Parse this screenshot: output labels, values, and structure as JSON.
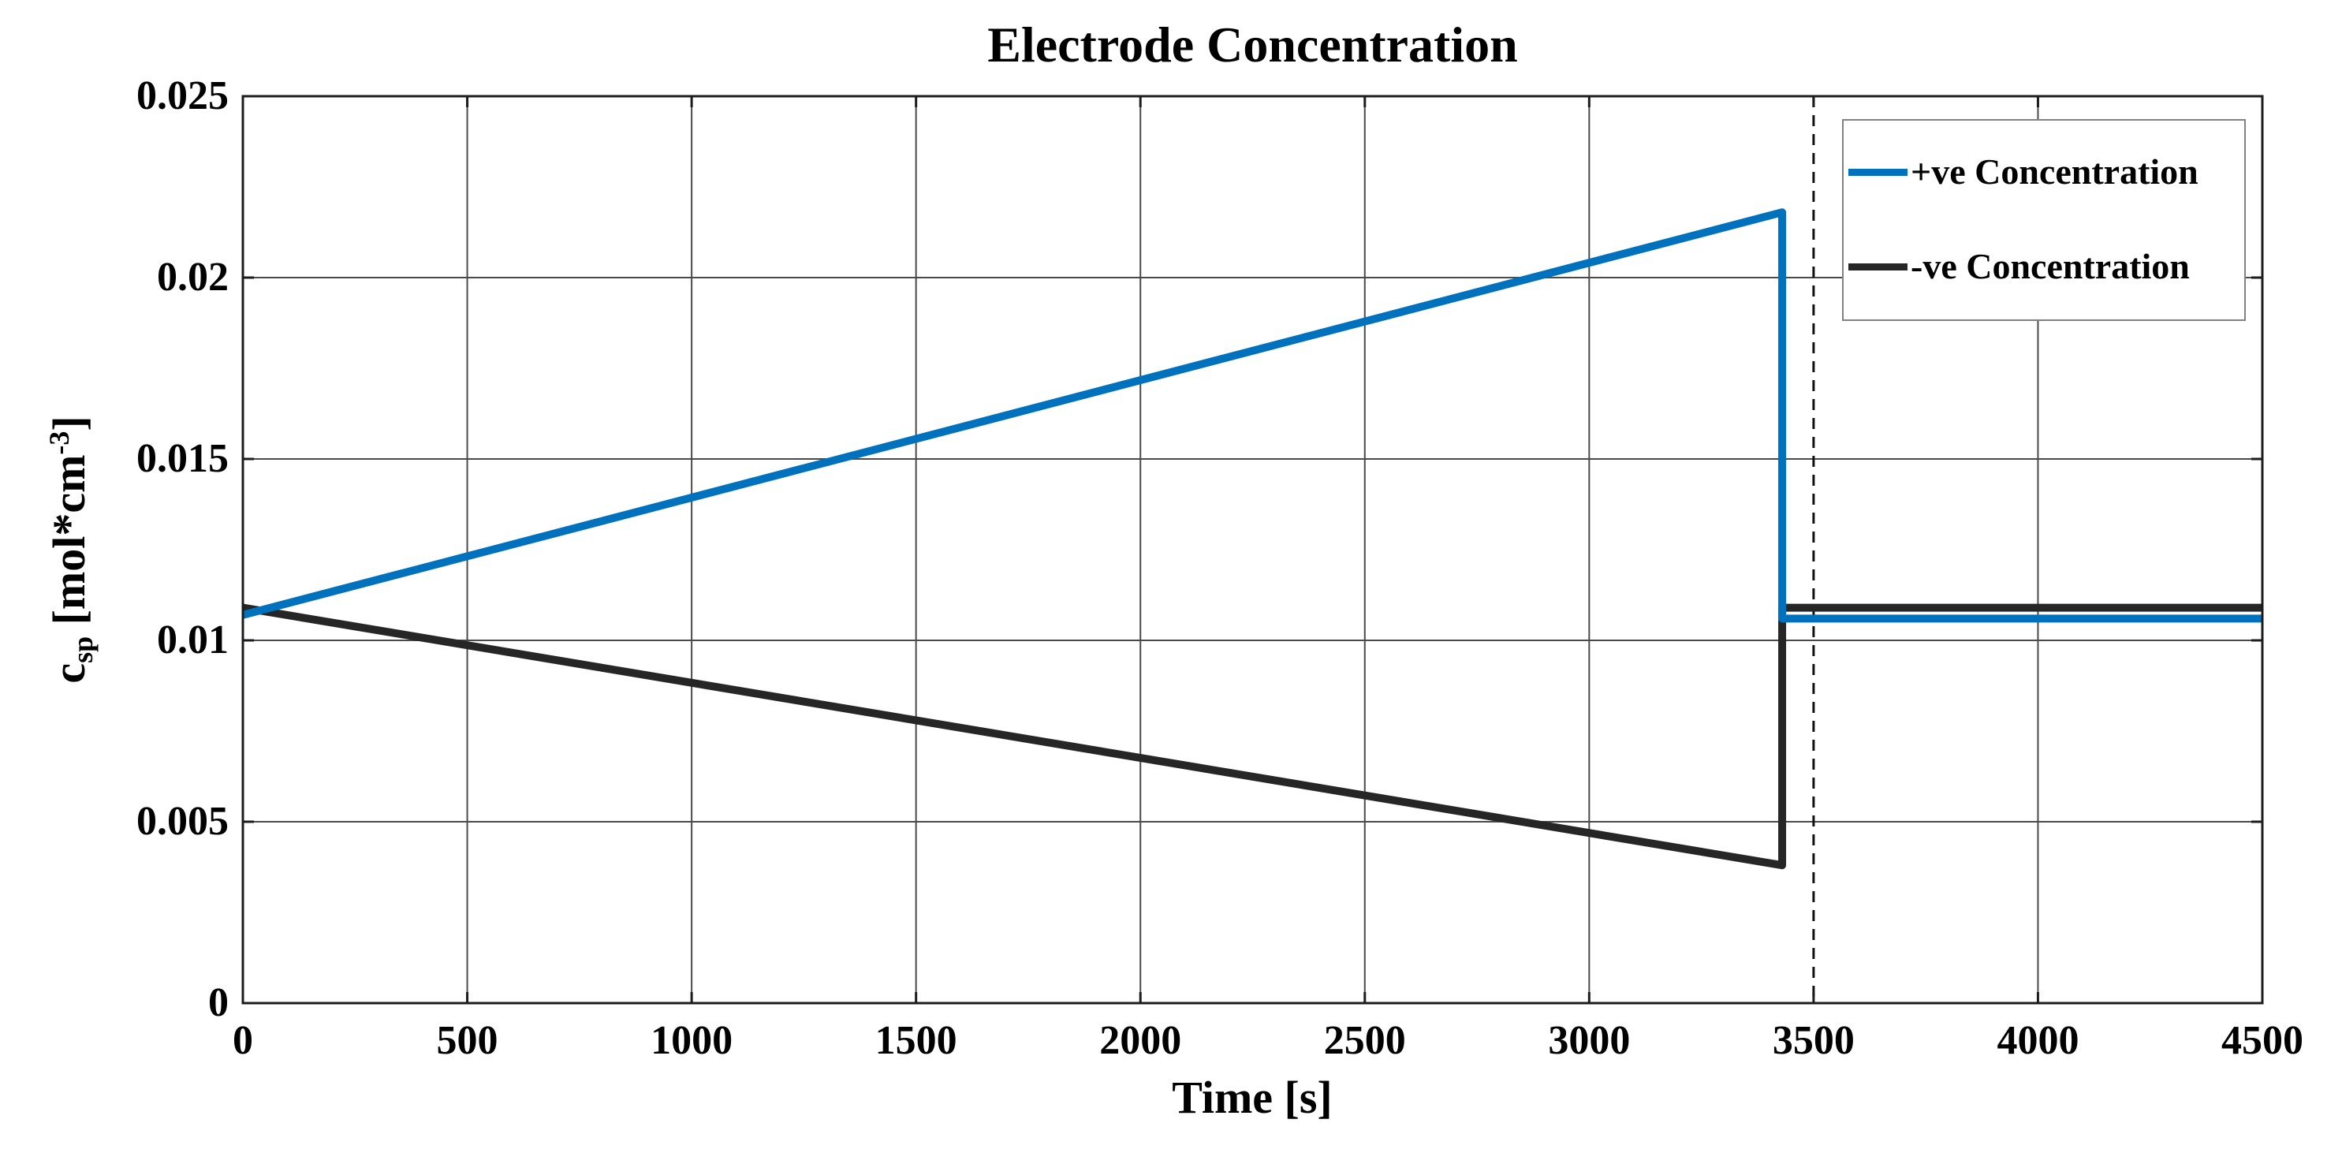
{
  "chart_data": {
    "type": "line",
    "title": "Electrode Concentration",
    "xlabel": "Time [s]",
    "ylabel_plain": "c_sp [mol*cm^-3]",
    "ylabel_parts": {
      "base": "c",
      "sub": "sp",
      "mid": " [mol*cm",
      "sup": "-3",
      "end": "]"
    },
    "xlim": [
      0,
      4500
    ],
    "ylim": [
      0,
      0.025
    ],
    "xticks": [
      0,
      500,
      1000,
      1500,
      2000,
      2500,
      3000,
      3500,
      4000,
      4500
    ],
    "xtick_labels": [
      "0",
      "500",
      "1000",
      "1500",
      "2000",
      "2500",
      "3000",
      "3500",
      "4000",
      "4500"
    ],
    "yticks": [
      0,
      0.005,
      0.01,
      0.015,
      0.02,
      0.025
    ],
    "ytick_labels": [
      "0",
      "0.005",
      "0.01",
      "0.015",
      "0.02",
      "0.025"
    ],
    "grid": true,
    "dashed_vertical_line_x": 3500,
    "step_time_s": 3430,
    "series": [
      {
        "name": "-ve Concentration",
        "color": "#262626",
        "points": [
          [
            0,
            0.0109
          ],
          [
            3430,
            0.0038
          ],
          [
            3430,
            0.0109
          ],
          [
            4500,
            0.0109
          ]
        ]
      },
      {
        "name": "+ve Concentration",
        "color": "#0072BD",
        "points": [
          [
            0,
            0.0107
          ],
          [
            3430,
            0.0218
          ],
          [
            3430,
            0.0106
          ],
          [
            4500,
            0.0106
          ]
        ]
      }
    ],
    "legend": {
      "position": "top-right",
      "entries": [
        {
          "label": "+ve Concentration",
          "color": "#0072BD"
        },
        {
          "label": "-ve Concentration",
          "color": "#262626"
        }
      ]
    },
    "colors": {
      "grid": "#4a4a4a",
      "frame": "#1c1c1c",
      "dashed_line": "#111111",
      "background": "#ffffff",
      "legend_border": "#818181"
    }
  }
}
